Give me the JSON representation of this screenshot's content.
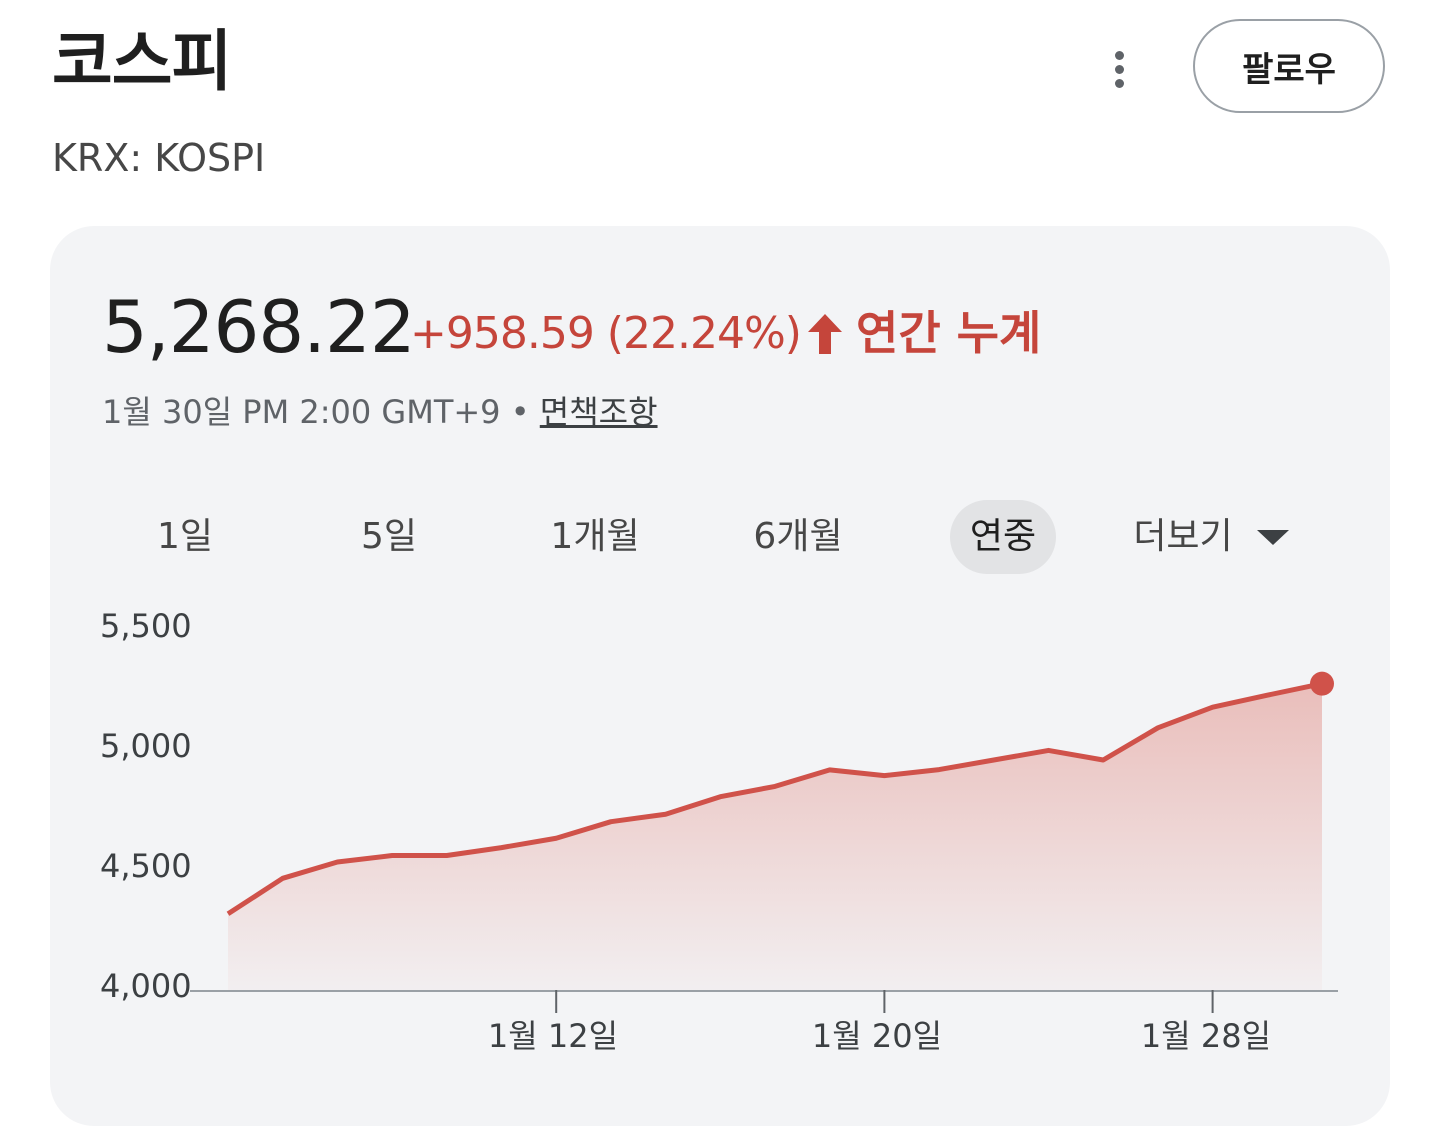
{
  "header": {
    "title": "코스피",
    "ticker": "KRX: KOSPI",
    "follow_label": "팔로우"
  },
  "quote": {
    "price": "5,268.22",
    "change": "+958.59 (22.24%)",
    "period": "연간 누계",
    "timestamp": "1월 30일 PM 2:00 GMT+9 • ",
    "disclaimer": "면책조항"
  },
  "tabs": [
    {
      "label": "1일"
    },
    {
      "label": "5일"
    },
    {
      "label": "1개월"
    },
    {
      "label": "6개월"
    },
    {
      "label": "연중",
      "active": true
    },
    {
      "label": "더보기"
    }
  ],
  "colors": {
    "accent_red": "#c5453b",
    "line": "#d0524a",
    "fill": "#e8b4b0"
  },
  "chart_data": {
    "type": "area",
    "y_tick_labels": [
      "5,500",
      "5,000",
      "4,500",
      "4,000"
    ],
    "y_ticks": [
      5500,
      5000,
      4500,
      4000
    ],
    "ylim": [
      4000,
      5500
    ],
    "x_tick_labels": [
      "1월 12일",
      "1월 20일",
      "1월 28일"
    ],
    "x_tick_index": [
      6,
      12,
      18
    ],
    "series": [
      {
        "values": [
          4309,
          4457,
          4525,
          4552,
          4552,
          4585,
          4624,
          4693,
          4724,
          4797,
          4840,
          4909,
          4885,
          4910,
          4950,
          4990,
          4950,
          5084,
          5170,
          5220,
          5268
        ]
      }
    ],
    "grid": false
  }
}
